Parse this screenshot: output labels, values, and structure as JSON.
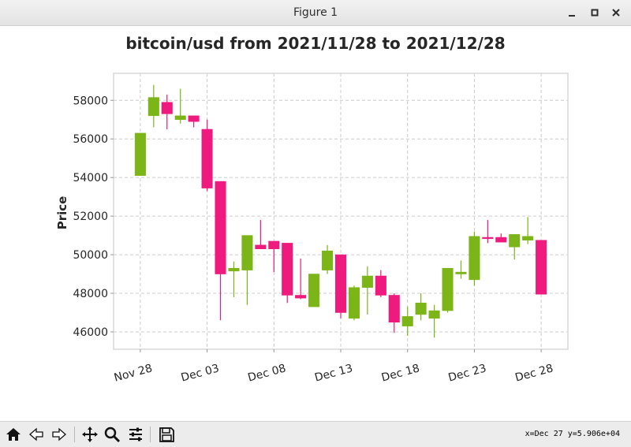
{
  "window": {
    "title": "Figure 1",
    "minimize_icon": "minimize-icon",
    "maximize_icon": "maximize-icon",
    "close_icon": "close-icon"
  },
  "toolbar": {
    "buttons": [
      {
        "name": "home",
        "icon": "home-icon"
      },
      {
        "name": "back",
        "icon": "back-arrow-icon"
      },
      {
        "name": "forward",
        "icon": "forward-arrow-icon"
      },
      {
        "name": "pan",
        "icon": "move-icon"
      },
      {
        "name": "zoom",
        "icon": "zoom-icon"
      },
      {
        "name": "configure-subplots",
        "icon": "sliders-icon"
      },
      {
        "name": "save",
        "icon": "save-icon"
      }
    ],
    "coordinates": "x=Dec 27 y=5.906e+04"
  },
  "colors": {
    "up": "#7cb518",
    "down": "#ee1a7e",
    "grid": "#cccccc",
    "frame": "#d8d8d8"
  },
  "chart_data": {
    "type": "candlestick",
    "title": "bitcoin/usd from 2021/11/28 to 2021/12/28",
    "xlabel": "",
    "ylabel": "Price",
    "ylim": [
      45100,
      59400
    ],
    "yticks": [
      46000,
      48000,
      50000,
      52000,
      54000,
      56000,
      58000
    ],
    "ytick_labels": [
      "46000",
      "48000",
      "50000",
      "52000",
      "54000",
      "56000",
      "58000"
    ],
    "xticks": [
      "2021-11-28",
      "2021-12-03",
      "2021-12-08",
      "2021-12-13",
      "2021-12-18",
      "2021-12-23",
      "2021-12-28"
    ],
    "xtick_labels": [
      "Nov 28",
      "Dec 03",
      "Dec 08",
      "Dec 13",
      "Dec 18",
      "Dec 23",
      "Dec 28"
    ],
    "grid": true,
    "candles": [
      {
        "date": "2021-11-28",
        "open": 54100,
        "high": 56300,
        "low": 54100,
        "close": 56300
      },
      {
        "date": "2021-11-29",
        "open": 57200,
        "high": 58800,
        "low": 56600,
        "close": 58150
      },
      {
        "date": "2021-11-30",
        "open": 57900,
        "high": 58300,
        "low": 56500,
        "close": 57300
      },
      {
        "date": "2021-12-01",
        "open": 57000,
        "high": 58600,
        "low": 56800,
        "close": 57200
      },
      {
        "date": "2021-12-02",
        "open": 57200,
        "high": 57200,
        "low": 56600,
        "close": 56900
      },
      {
        "date": "2021-12-03",
        "open": 56500,
        "high": 57000,
        "low": 53300,
        "close": 53450
      },
      {
        "date": "2021-12-04",
        "open": 53800,
        "high": 53800,
        "low": 46600,
        "close": 49000
      },
      {
        "date": "2021-12-05",
        "open": 49150,
        "high": 49650,
        "low": 47800,
        "close": 49300
      },
      {
        "date": "2021-12-06",
        "open": 49200,
        "high": 51000,
        "low": 47400,
        "close": 51000
      },
      {
        "date": "2021-12-07",
        "open": 50500,
        "high": 51800,
        "low": 50300,
        "close": 50300
      },
      {
        "date": "2021-12-08",
        "open": 50700,
        "high": 50700,
        "low": 49100,
        "close": 50300
      },
      {
        "date": "2021-12-09",
        "open": 50600,
        "high": 50600,
        "low": 47500,
        "close": 47900
      },
      {
        "date": "2021-12-10",
        "open": 47900,
        "high": 49800,
        "low": 47700,
        "close": 47750
      },
      {
        "date": "2021-12-11",
        "open": 47300,
        "high": 49000,
        "low": 47300,
        "close": 49000
      },
      {
        "date": "2021-12-12",
        "open": 49200,
        "high": 50500,
        "low": 49000,
        "close": 50200
      },
      {
        "date": "2021-12-13",
        "open": 50000,
        "high": 50000,
        "low": 46700,
        "close": 47000
      },
      {
        "date": "2021-12-14",
        "open": 46700,
        "high": 48400,
        "low": 46600,
        "close": 48300
      },
      {
        "date": "2021-12-15",
        "open": 48300,
        "high": 49400,
        "low": 46900,
        "close": 48900
      },
      {
        "date": "2021-12-16",
        "open": 48900,
        "high": 49200,
        "low": 47800,
        "close": 47900
      },
      {
        "date": "2021-12-17",
        "open": 47900,
        "high": 48000,
        "low": 45950,
        "close": 46500
      },
      {
        "date": "2021-12-18",
        "open": 46300,
        "high": 47300,
        "low": 45800,
        "close": 46800
      },
      {
        "date": "2021-12-19",
        "open": 46900,
        "high": 48000,
        "low": 46600,
        "close": 47500
      },
      {
        "date": "2021-12-20",
        "open": 46700,
        "high": 47400,
        "low": 45700,
        "close": 47100
      },
      {
        "date": "2021-12-21",
        "open": 47100,
        "high": 49300,
        "low": 47000,
        "close": 49300
      },
      {
        "date": "2021-12-22",
        "open": 49000,
        "high": 49700,
        "low": 48750,
        "close": 49100
      },
      {
        "date": "2021-12-23",
        "open": 48700,
        "high": 51200,
        "low": 48400,
        "close": 50950
      },
      {
        "date": "2021-12-24",
        "open": 50900,
        "high": 51800,
        "low": 50600,
        "close": 50850
      },
      {
        "date": "2021-12-25",
        "open": 50900,
        "high": 51100,
        "low": 50700,
        "close": 50650
      },
      {
        "date": "2021-12-26",
        "open": 50400,
        "high": 51050,
        "low": 49750,
        "close": 51050
      },
      {
        "date": "2021-12-27",
        "open": 50750,
        "high": 51950,
        "low": 50550,
        "close": 50950
      },
      {
        "date": "2021-12-28",
        "open": 50750,
        "high": 50750,
        "low": 47950,
        "close": 47950
      }
    ]
  }
}
